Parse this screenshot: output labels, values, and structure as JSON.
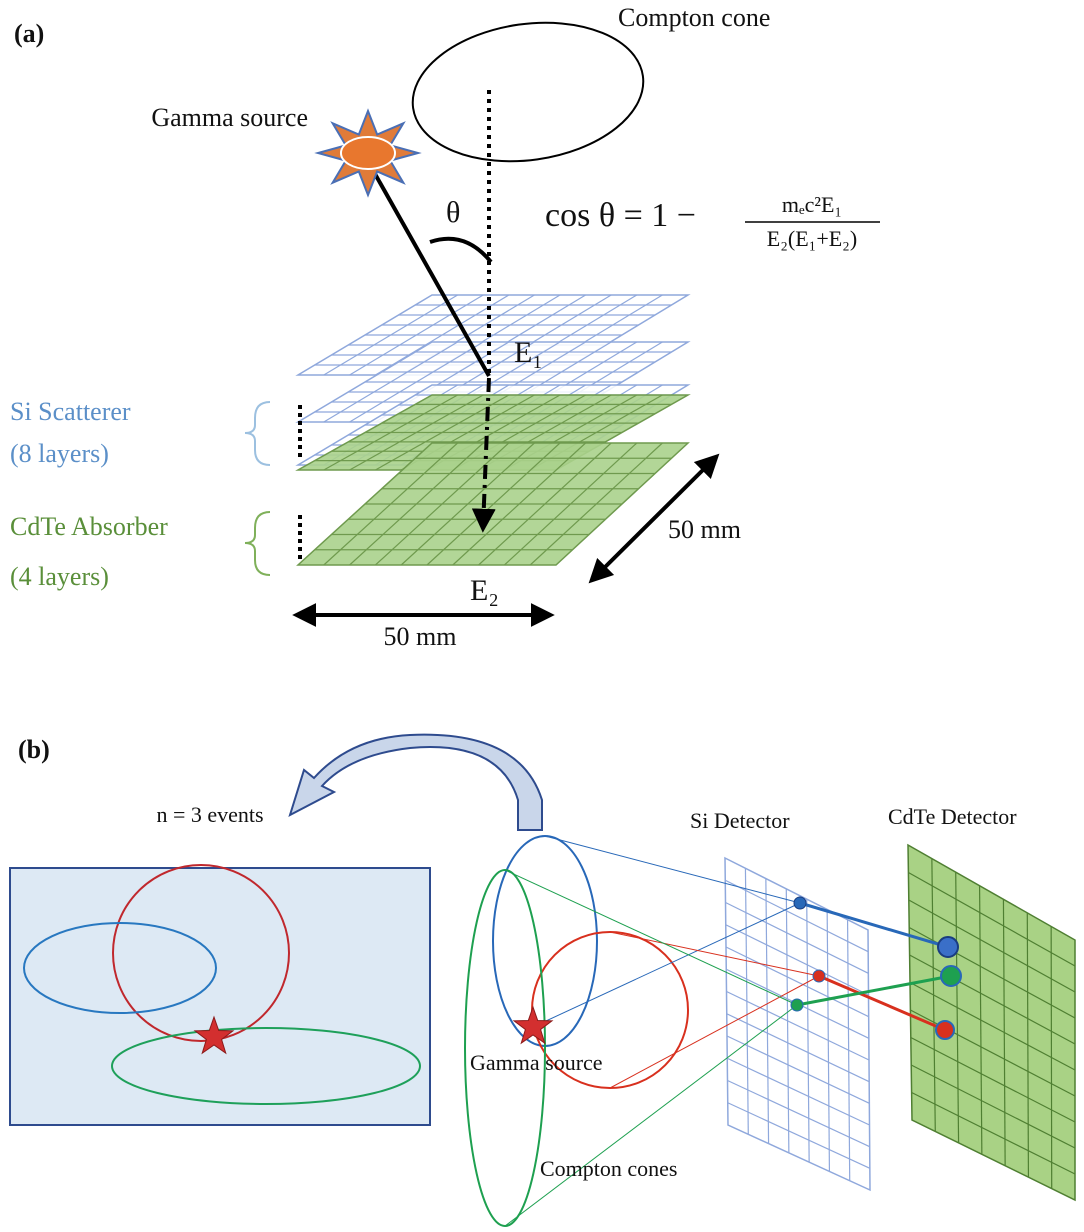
{
  "panel_a": {
    "label": "(a)",
    "compton_cone": "Compton cone",
    "gamma_source": "Gamma source",
    "theta": "θ",
    "formula": {
      "lhs": "cos θ  = 1 −",
      "numerator": "mₑc²E₁",
      "denominator": "E₂(E₁+E₂)"
    },
    "e1": "E₁",
    "e2": "E₂",
    "si_scatterer": [
      "Si Scatterer",
      "(8 layers)"
    ],
    "cdte_absorber": [
      "CdTe Absorber",
      "(4 layers)"
    ],
    "width_label": "50 mm",
    "depth_label": "50 mm"
  },
  "panel_b": {
    "label": "(b)",
    "events": "n = 3 events",
    "si_detector": "Si Detector",
    "cdte_detector": "CdTe Detector",
    "gamma_source": "Gamma source",
    "compton_cones": "Compton cones"
  }
}
